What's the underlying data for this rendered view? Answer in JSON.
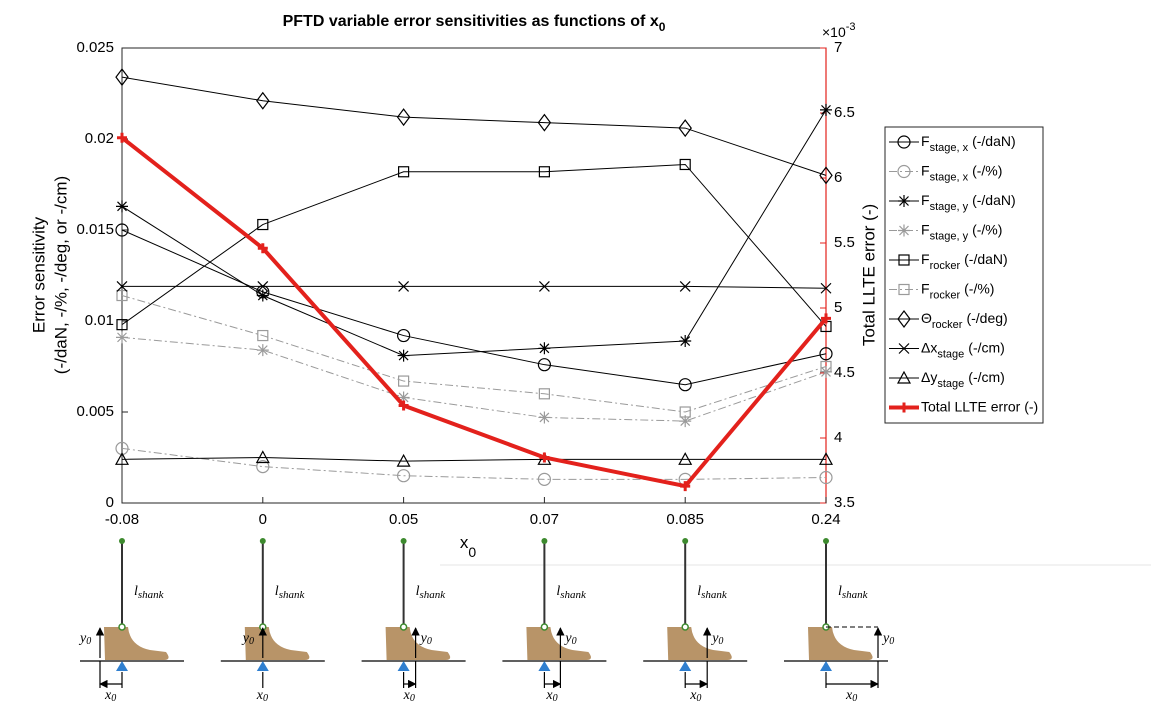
{
  "chart_data": {
    "type": "line",
    "title": "PFTD variable error sensitivities as functions of x",
    "title_sub": "0",
    "x_label": "x",
    "x_label_sub": "0",
    "y_label": "Error sensitivity",
    "y_label_line2": "(-/daN, -/%, -/deg, or -/cm)",
    "y2_label": "Total LLTE error (-)",
    "y2_multiplier": "×10",
    "y2_exponent": "-3",
    "y2_color": "#e3211c",
    "categories": [
      "-0.08",
      "0",
      "0.05",
      "0.07",
      "0.085",
      "0.24"
    ],
    "ylim": [
      0,
      0.025
    ],
    "yticks": [
      0,
      0.005,
      0.01,
      0.015,
      0.02,
      0.025
    ],
    "y2lim": [
      3.5,
      7
    ],
    "y2ticks": [
      3.5,
      4,
      4.5,
      5,
      5.5,
      6,
      6.5,
      7
    ],
    "legend": "right",
    "series": [
      {
        "name": "F",
        "name_sub": "stage, x",
        "unit": "(-/daN)",
        "color": "#000000",
        "marker": "circle",
        "dash": "solid",
        "values": [
          0.015,
          0.0116,
          0.0092,
          0.0076,
          0.0065,
          0.0082
        ]
      },
      {
        "name": "F",
        "name_sub": "stage, x",
        "unit": "(-/%)",
        "color": "#9a9a9a",
        "marker": "circle",
        "dash": "dashdot",
        "values": [
          0.003,
          0.002,
          0.0015,
          0.0013,
          0.0013,
          0.0014
        ]
      },
      {
        "name": "F",
        "name_sub": "stage, y",
        "unit": "(-/daN)",
        "color": "#000000",
        "marker": "star",
        "dash": "solid",
        "values": [
          0.0163,
          0.0114,
          0.0081,
          0.0085,
          0.0089,
          0.0216
        ]
      },
      {
        "name": "F",
        "name_sub": "stage, y",
        "unit": "(-/%)",
        "color": "#9a9a9a",
        "marker": "star",
        "dash": "dashdot",
        "values": [
          0.0091,
          0.0084,
          0.0058,
          0.0047,
          0.0045,
          0.0072
        ]
      },
      {
        "name": "F",
        "name_sub": "rocker",
        "unit": "(-/daN)",
        "color": "#000000",
        "marker": "square",
        "dash": "solid",
        "values": [
          0.0098,
          0.0153,
          0.0182,
          0.0182,
          0.0186,
          0.0097
        ]
      },
      {
        "name": "F",
        "name_sub": "rocker",
        "unit": "(-/%)",
        "color": "#9a9a9a",
        "marker": "square",
        "dash": "dashdot",
        "values": [
          0.0114,
          0.0092,
          0.0067,
          0.006,
          0.005,
          0.0075
        ]
      },
      {
        "name": "Θ",
        "name_sub": "rocker",
        "unit": "(-/deg)",
        "color": "#000000",
        "marker": "diamond",
        "dash": "solid",
        "values": [
          0.0234,
          0.0221,
          0.0212,
          0.0209,
          0.0206,
          0.018
        ]
      },
      {
        "name": "Δx",
        "name_sub": "stage",
        "unit": "(-/cm)",
        "color": "#000000",
        "marker": "x",
        "dash": "solid",
        "values": [
          0.0119,
          0.0119,
          0.0119,
          0.0119,
          0.0119,
          0.0118
        ]
      },
      {
        "name": "Δy",
        "name_sub": "stage",
        "unit": "(-/cm)",
        "color": "#000000",
        "marker": "triangle",
        "dash": "solid",
        "values": [
          0.0024,
          0.0025,
          0.0023,
          0.0024,
          0.0024,
          0.0024
        ]
      },
      {
        "name": "Total LLTE error (-)",
        "color": "#e3211c",
        "marker": "plus",
        "dash": "solid",
        "line_width": 4,
        "axis": "y2",
        "values": [
          6.31,
          5.46,
          4.25,
          3.85,
          3.63,
          4.92
        ]
      }
    ]
  },
  "diagrams": [
    {
      "shank": "l",
      "shank_sub": "shank",
      "y": "y",
      "y_sub": "0",
      "x": "x",
      "x_sub": "0"
    },
    {
      "shank": "l",
      "shank_sub": "shank",
      "y": "y",
      "y_sub": "0",
      "x": "x",
      "x_sub": "0"
    },
    {
      "shank": "l",
      "shank_sub": "shank",
      "y": "y",
      "y_sub": "0",
      "x": "x",
      "x_sub": "0"
    },
    {
      "shank": "l",
      "shank_sub": "shank",
      "y": "y",
      "y_sub": "0",
      "x": "x",
      "x_sub": "0"
    },
    {
      "shank": "l",
      "shank_sub": "shank",
      "y": "y",
      "y_sub": "0",
      "x": "x",
      "x_sub": "0"
    },
    {
      "shank": "l",
      "shank_sub": "shank",
      "y": "y",
      "y_sub": "0",
      "x": "x",
      "x_sub": "0"
    }
  ]
}
